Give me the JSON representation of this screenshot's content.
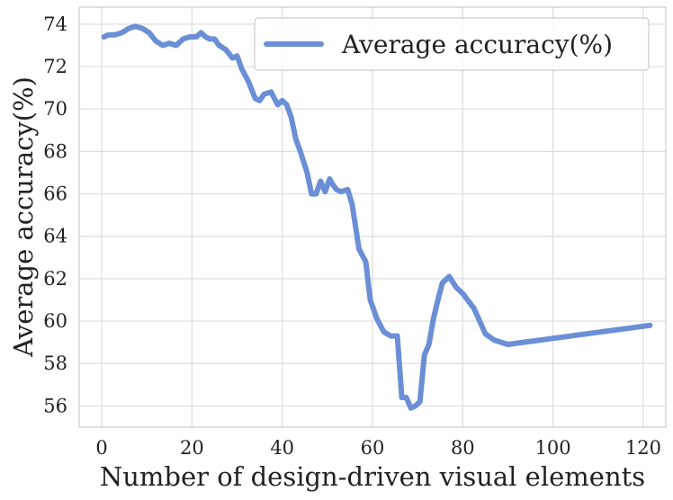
{
  "chart_data": {
    "type": "line",
    "title": "",
    "xlabel": "Number of design-driven visual elements",
    "ylabel": "Average accuracy(%)",
    "xlim": [
      -5,
      125
    ],
    "ylim": [
      55.0,
      74.8
    ],
    "xticks": [
      0,
      20,
      40,
      60,
      80,
      100,
      120
    ],
    "yticks": [
      56,
      58,
      60,
      62,
      64,
      66,
      68,
      70,
      72,
      74
    ],
    "grid": true,
    "legend_position": "top-right",
    "series": [
      {
        "name": "Average accuracy(%)",
        "color": "#6a8fd6",
        "x": [
          0.5,
          1.5,
          3,
          4.5,
          6,
          7.5,
          9,
          10.5,
          12,
          13.5,
          15,
          16.5,
          18,
          19.5,
          21,
          22,
          23,
          24,
          25,
          26,
          27.5,
          29,
          30,
          31,
          32.5,
          34,
          35,
          36,
          37.5,
          39,
          40,
          41,
          42,
          43,
          44,
          45.5,
          46.5,
          47.5,
          48.5,
          49.5,
          50.5,
          51,
          52,
          53,
          54.5,
          55.5,
          57,
          58.5,
          59.5,
          61,
          62.5,
          64,
          65.5,
          66.5,
          67.5,
          68.5,
          69.5,
          70.5,
          71.5,
          72.5,
          73.5,
          74.5,
          75.5,
          77,
          78.5,
          80,
          82.5,
          85,
          87,
          90,
          121.5
        ],
        "y": [
          73.4,
          73.5,
          73.5,
          73.6,
          73.8,
          73.9,
          73.8,
          73.6,
          73.2,
          73.0,
          73.1,
          73.0,
          73.3,
          73.4,
          73.4,
          73.6,
          73.4,
          73.3,
          73.3,
          73.0,
          72.8,
          72.4,
          72.5,
          71.9,
          71.3,
          70.5,
          70.4,
          70.7,
          70.8,
          70.2,
          70.4,
          70.2,
          69.6,
          68.6,
          68.0,
          67.0,
          66.0,
          66.0,
          66.6,
          66.1,
          66.7,
          66.5,
          66.2,
          66.1,
          66.2,
          65.5,
          63.4,
          62.8,
          61.0,
          60.1,
          59.5,
          59.3,
          59.3,
          56.4,
          56.4,
          55.9,
          56.0,
          56.2,
          58.4,
          58.9,
          60.1,
          61.0,
          61.8,
          62.1,
          61.6,
          61.3,
          60.6,
          59.4,
          59.1,
          58.9,
          59.8
        ]
      }
    ]
  }
}
